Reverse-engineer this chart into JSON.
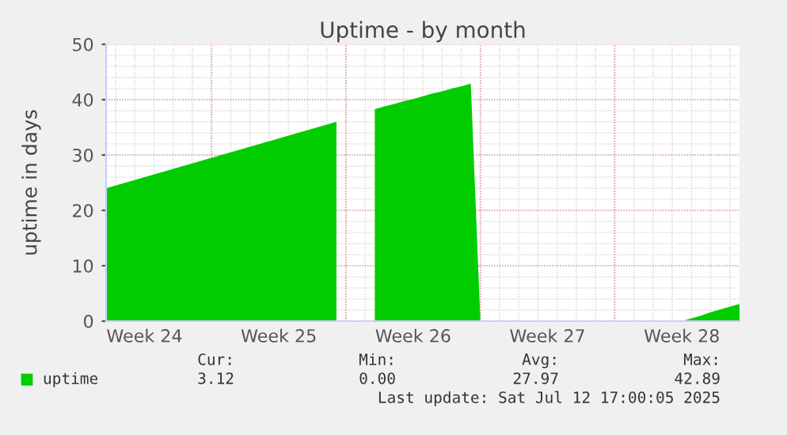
{
  "chart_data": {
    "type": "area",
    "title": "Uptime - by month",
    "ylabel": "uptime in days",
    "categories": [
      null,
      null,
      null,
      null,
      "Week 24",
      null,
      null,
      null,
      null,
      null,
      null,
      null,
      null,
      null,
      null,
      null,
      null,
      null,
      "Week 25",
      null,
      null,
      null,
      null,
      null,
      null,
      null,
      null,
      null,
      null,
      null,
      null,
      null,
      "Week 26",
      null,
      null,
      null,
      null,
      null,
      null,
      null,
      null,
      null,
      null,
      null,
      null,
      null,
      "Week 27",
      null,
      null,
      null,
      null,
      null,
      null,
      null,
      null,
      null,
      null,
      null,
      null,
      null,
      "Week 28",
      null,
      null,
      null,
      null,
      null,
      null
    ],
    "series": [
      {
        "name": "uptime",
        "color": "#00cc00",
        "values": [
          24,
          24.5,
          25,
          25.5,
          26,
          26.5,
          27,
          27.5,
          28,
          28.5,
          29,
          29.5,
          30,
          30.5,
          31,
          31.5,
          32,
          32.5,
          33,
          33.5,
          34,
          34.5,
          35,
          35.5,
          36,
          null,
          null,
          null,
          38.3,
          38.8,
          39.2,
          39.7,
          40.1,
          40.6,
          41.1,
          41.5,
          42.0,
          42.4,
          42.89,
          0,
          0,
          0,
          0,
          0,
          0,
          0,
          0,
          0,
          0,
          0,
          0,
          0,
          0,
          0,
          0,
          0,
          0,
          0,
          0,
          0,
          0,
          0.5,
          1.0,
          1.6,
          2.1,
          2.6,
          3.12
        ]
      }
    ],
    "ylim": [
      0,
      50
    ],
    "yticks": [
      0,
      10,
      20,
      30,
      40,
      50
    ],
    "grid": true,
    "legend": "bottom",
    "annotations": [
      "Cur:",
      "Min:",
      "Avg:",
      "Max:",
      "3.12",
      "0.00",
      "27.97",
      "42.89",
      "Last update: Sat Jul 12 17:00:05 2025"
    ]
  }
}
